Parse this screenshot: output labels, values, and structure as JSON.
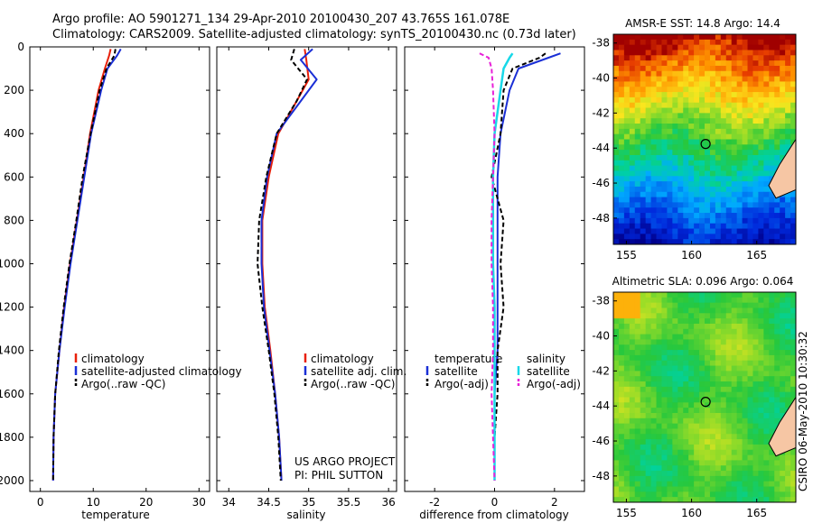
{
  "header": {
    "line1": "Argo profile: AO 5901271_134 29-Apr-2010 20100430_207 43.765S 161.078E",
    "line2": "Climatology: CARS2009. Satellite-adjusted climatology: synTS_20100430.nc (0.73d later)"
  },
  "colors": {
    "climatology": "#e8200a",
    "satellite": "#1a2fd6",
    "argo": "#000000",
    "sal_satellite": "#18d8e8",
    "sal_argo": "#e820d8",
    "coast": "#f6c6a4",
    "float_marker": "#000000"
  },
  "depth_axis": {
    "ticks": [
      "0",
      "200",
      "400",
      "600",
      "800",
      "1000",
      "1200",
      "1400",
      "1600",
      "1800",
      "2000"
    ]
  },
  "chart_data": [
    {
      "type": "line",
      "id": "temperature",
      "xlabel": "temperature",
      "xlim": [
        -2,
        32
      ],
      "ylim": [
        2050,
        0
      ],
      "xticks": [
        "0",
        "10",
        "20",
        "30"
      ],
      "series": [
        {
          "name": "climatology",
          "x": [
            13.3,
            13.0,
            12.2,
            11.0,
            9.4,
            8.2,
            6.9,
            5.6,
            4.5,
            3.6,
            2.8,
            2.5,
            2.4
          ],
          "y": [
            10,
            40,
            100,
            200,
            400,
            600,
            800,
            1000,
            1200,
            1400,
            1600,
            1800,
            2000
          ]
        },
        {
          "name": "satellite-adjusted climatology",
          "x": [
            15.2,
            14.5,
            12.7,
            11.5,
            9.6,
            8.3,
            7.0,
            5.7,
            4.6,
            3.6,
            2.8,
            2.5,
            2.4
          ],
          "y": [
            10,
            40,
            100,
            200,
            400,
            600,
            800,
            1000,
            1200,
            1400,
            1600,
            1800,
            2000
          ]
        },
        {
          "name": "Argo(..raw -QC)",
          "x": [
            14.2,
            14.0,
            12.5,
            11.2,
            9.5,
            8.0,
            6.8,
            5.5,
            4.4,
            3.5,
            2.8,
            2.5,
            2.4
          ],
          "y": [
            10,
            40,
            100,
            200,
            400,
            600,
            800,
            1000,
            1200,
            1400,
            1600,
            1800,
            2000
          ]
        }
      ],
      "legend": [
        "climatology",
        "satellite-adjusted climatology",
        "Argo(..raw -QC)"
      ]
    },
    {
      "type": "line",
      "id": "salinity",
      "xlabel": "salinity",
      "xlim": [
        33.85,
        36.1
      ],
      "ylim": [
        2050,
        0
      ],
      "xticks": [
        "34",
        "34.5",
        "35",
        "35.5",
        "36"
      ],
      "series": [
        {
          "name": "climatology",
          "x": [
            34.95,
            34.97,
            35.0,
            34.85,
            34.62,
            34.5,
            34.42,
            34.42,
            34.45,
            34.52,
            34.58,
            34.63,
            34.66
          ],
          "y": [
            10,
            60,
            150,
            250,
            400,
            600,
            800,
            1000,
            1200,
            1400,
            1600,
            1800,
            2000
          ]
        },
        {
          "name": "satellite adj. clim.",
          "x": [
            35.05,
            34.9,
            35.1,
            34.9,
            34.6,
            34.48,
            34.41,
            34.41,
            34.44,
            34.51,
            34.58,
            34.63,
            34.66
          ],
          "y": [
            10,
            60,
            150,
            250,
            400,
            600,
            800,
            1000,
            1200,
            1400,
            1600,
            1800,
            2000
          ]
        },
        {
          "name": "Argo(..raw -QC)",
          "x": [
            34.82,
            34.78,
            34.98,
            34.85,
            34.6,
            34.47,
            34.38,
            34.36,
            34.42,
            34.5,
            34.57,
            34.62,
            34.65
          ],
          "y": [
            10,
            60,
            150,
            250,
            400,
            600,
            800,
            1000,
            1200,
            1400,
            1600,
            1800,
            2000
          ]
        }
      ],
      "legend": [
        "climatology",
        "satellite adj. clim.",
        "Argo(..raw -QC)"
      ],
      "annotation": [
        "US ARGO PROJECT",
        "PI: PHIL SUTTON"
      ]
    },
    {
      "type": "line",
      "id": "difference",
      "xlabel": "difference from climatology",
      "xlim": [
        -3,
        3
      ],
      "ylim": [
        2050,
        0
      ],
      "xticks": [
        "-2",
        "0",
        "2"
      ],
      "series": [
        {
          "name": "temperature satellite",
          "x": [
            2.2,
            1.8,
            0.8,
            0.5,
            0.2,
            0.1,
            0.1,
            0.1,
            0.1,
            0.1,
            0.0,
            0.0,
            0.0
          ],
          "y": [
            30,
            50,
            100,
            200,
            400,
            600,
            800,
            1000,
            1200,
            1400,
            1600,
            1800,
            2000
          ]
        },
        {
          "name": "temperature Argo(-adj)",
          "x": [
            1.7,
            1.5,
            0.6,
            0.3,
            0.2,
            -0.1,
            0.3,
            0.2,
            0.3,
            0.1,
            0.1,
            0.0,
            0.0
          ],
          "y": [
            30,
            50,
            100,
            200,
            400,
            600,
            800,
            1000,
            1200,
            1400,
            1600,
            1800,
            2000
          ]
        },
        {
          "name": "salinity satellite",
          "x": [
            0.6,
            0.5,
            0.3,
            0.2,
            0.0,
            -0.05,
            -0.05,
            -0.05,
            0.0,
            0.0,
            0.0,
            0.0,
            0.0
          ],
          "y": [
            30,
            50,
            100,
            200,
            400,
            600,
            800,
            1000,
            1200,
            1400,
            1600,
            1800,
            2000
          ]
        },
        {
          "name": "salinity Argo(-adj)",
          "x": [
            -0.5,
            -0.2,
            -0.1,
            -0.05,
            0.0,
            -0.05,
            -0.1,
            -0.1,
            -0.05,
            -0.05,
            -0.1,
            -0.05,
            0.0
          ],
          "y": [
            30,
            50,
            100,
            200,
            400,
            600,
            800,
            1000,
            1200,
            1400,
            1600,
            1800,
            2000
          ]
        }
      ],
      "legend": {
        "temperature": [
          "temperature",
          "satellite",
          "Argo(-adj)"
        ],
        "salinity": [
          "salinity",
          "satellite",
          "Argo(-adj)"
        ]
      }
    },
    {
      "type": "heatmap",
      "id": "sst_map",
      "title": "AMSR-E SST: 14.8 Argo: 14.4",
      "xlim": [
        154,
        168
      ],
      "ylim": [
        -49.5,
        -37.5
      ],
      "xticks": [
        "155",
        "160",
        "165"
      ],
      "yticks": [
        "-38",
        "-40",
        "-42",
        "-44",
        "-46",
        "-48"
      ],
      "float_position": {
        "lon": 161.078,
        "lat": -43.765
      }
    },
    {
      "type": "heatmap",
      "id": "sla_map",
      "title": "Altimetric SLA: 0.096 Argo: 0.064",
      "xlim": [
        154,
        168
      ],
      "ylim": [
        -49.5,
        -37.5
      ],
      "xticks": [
        "155",
        "160",
        "165"
      ],
      "yticks": [
        "-38",
        "-40",
        "-42",
        "-44",
        "-46",
        "-48"
      ],
      "float_position": {
        "lon": 161.078,
        "lat": -43.765
      }
    }
  ],
  "footer_stamp": "CSIRO 06-May-2010 10:30:32"
}
